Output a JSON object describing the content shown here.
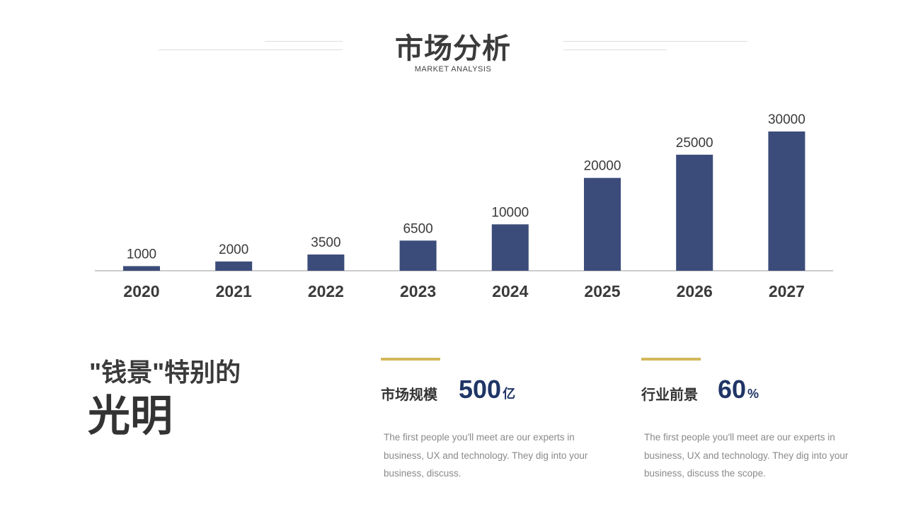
{
  "header": {
    "title": "市场分析",
    "subtitle": "MARKET ANALYSIS"
  },
  "chart_data": {
    "type": "bar",
    "categories": [
      "2020",
      "2021",
      "2022",
      "2023",
      "2024",
      "2025",
      "2026",
      "2027"
    ],
    "values": [
      1000,
      2000,
      3500,
      6500,
      10000,
      20000,
      25000,
      30000
    ],
    "data_labels": [
      "1000",
      "2000",
      "3500",
      "6500",
      "10000",
      "20000",
      "25000",
      "30000"
    ],
    "title": "",
    "xlabel": "",
    "ylabel": "",
    "ylim": [
      0,
      30000
    ],
    "bar_color": "#3c4c7a",
    "grid": false,
    "legend": "none"
  },
  "summary": {
    "tagline": "\"钱景\"特别的",
    "headline": "光明"
  },
  "metrics": [
    {
      "label": "市场规模",
      "value": "500",
      "unit": "亿",
      "description": "The first people you'll meet are our experts in business, UX and technology. They dig into your business, discuss."
    },
    {
      "label": "行业前景",
      "value": "60",
      "unit": "%",
      "description": "The first people you'll meet are our experts in business, UX and technology. They dig into your business, discuss the scope."
    }
  ],
  "colors": {
    "accent": "#d4b75a",
    "value_text": "#1f3566",
    "bar": "#3c4c7a"
  }
}
